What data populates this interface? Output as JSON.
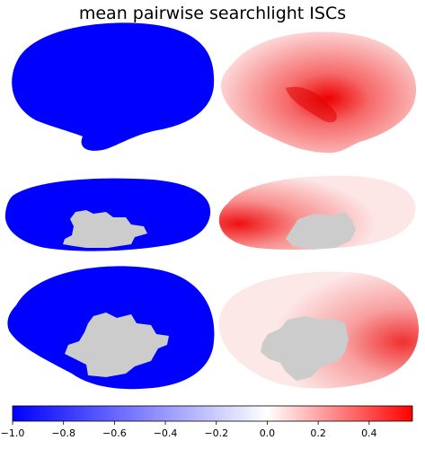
{
  "title": "mean pairwise searchlight ISCs",
  "colors": {
    "negative_map": "#0000ff",
    "medial_wall": "#cccccc",
    "cmap_low": "#0000ff",
    "cmap_mid": "#ffffff",
    "cmap_high": "#ff0000"
  },
  "panels": [
    {
      "row": "lateral",
      "hemisphere": "left",
      "map": "uniform-negative"
    },
    {
      "row": "lateral",
      "hemisphere": "right",
      "map": "positive-isc"
    },
    {
      "row": "ventral",
      "hemisphere": "left",
      "map": "uniform-negative",
      "medial_wall": true
    },
    {
      "row": "ventral",
      "hemisphere": "right",
      "map": "positive-isc",
      "medial_wall": true
    },
    {
      "row": "medial",
      "hemisphere": "left",
      "map": "uniform-negative",
      "medial_wall": true
    },
    {
      "row": "medial",
      "hemisphere": "right",
      "map": "positive-isc",
      "medial_wall": true
    }
  ],
  "colorbar": {
    "min": -1.0,
    "max": 0.57,
    "ticks": [
      -1.0,
      -0.8,
      -0.6,
      -0.4,
      -0.2,
      0.0,
      0.2,
      0.4
    ],
    "tick_labels": [
      "−1.0",
      "−0.8",
      "−0.6",
      "−0.4",
      "−0.2",
      "0.0",
      "0.2",
      "0.4"
    ]
  }
}
